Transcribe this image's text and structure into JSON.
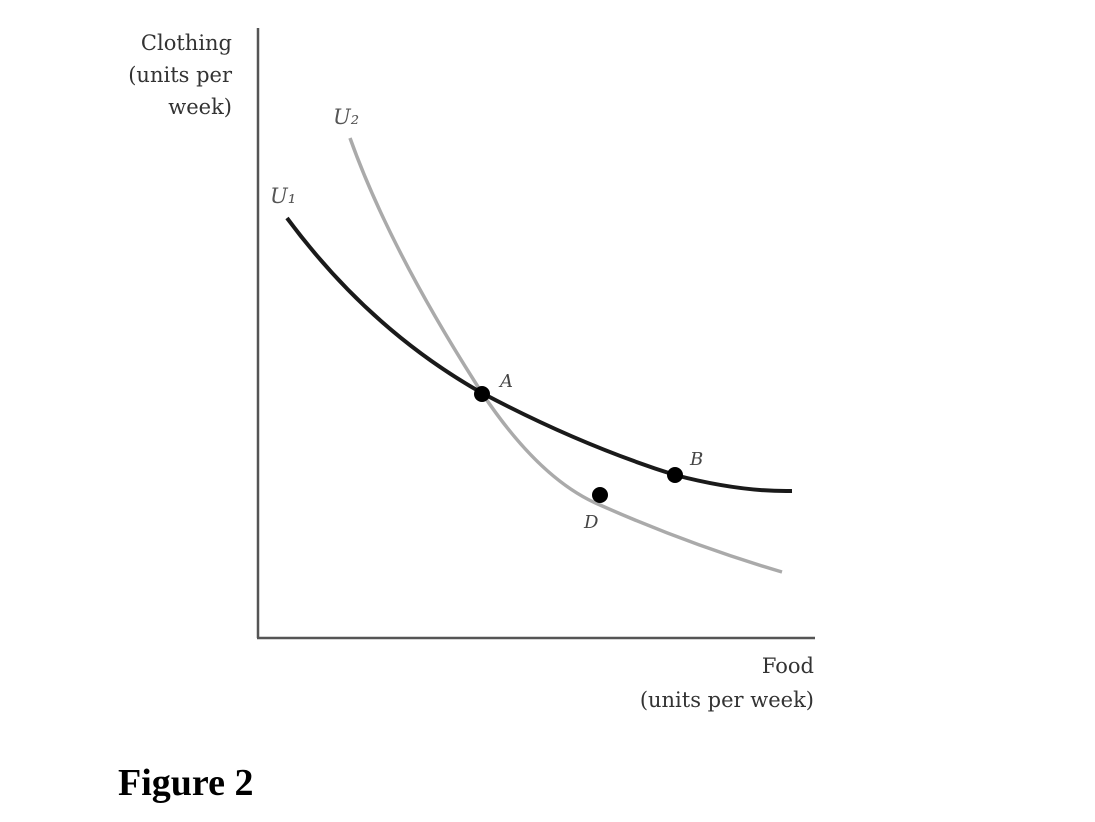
{
  "y_axis_label": [
    "Clothing",
    "(units per",
    "week)"
  ],
  "x_axis_label": [
    "Food",
    "(units per week)"
  ],
  "curves": [
    {
      "label": "U₁",
      "color": "#1a1a1a"
    },
    {
      "label": "U₂",
      "color": "#aaaaaa"
    }
  ],
  "points": [
    {
      "label": "A"
    },
    {
      "label": "B"
    },
    {
      "label": "D"
    }
  ],
  "caption": "Figure 2",
  "colors": {
    "axis": "#555555",
    "point": "#000000"
  }
}
